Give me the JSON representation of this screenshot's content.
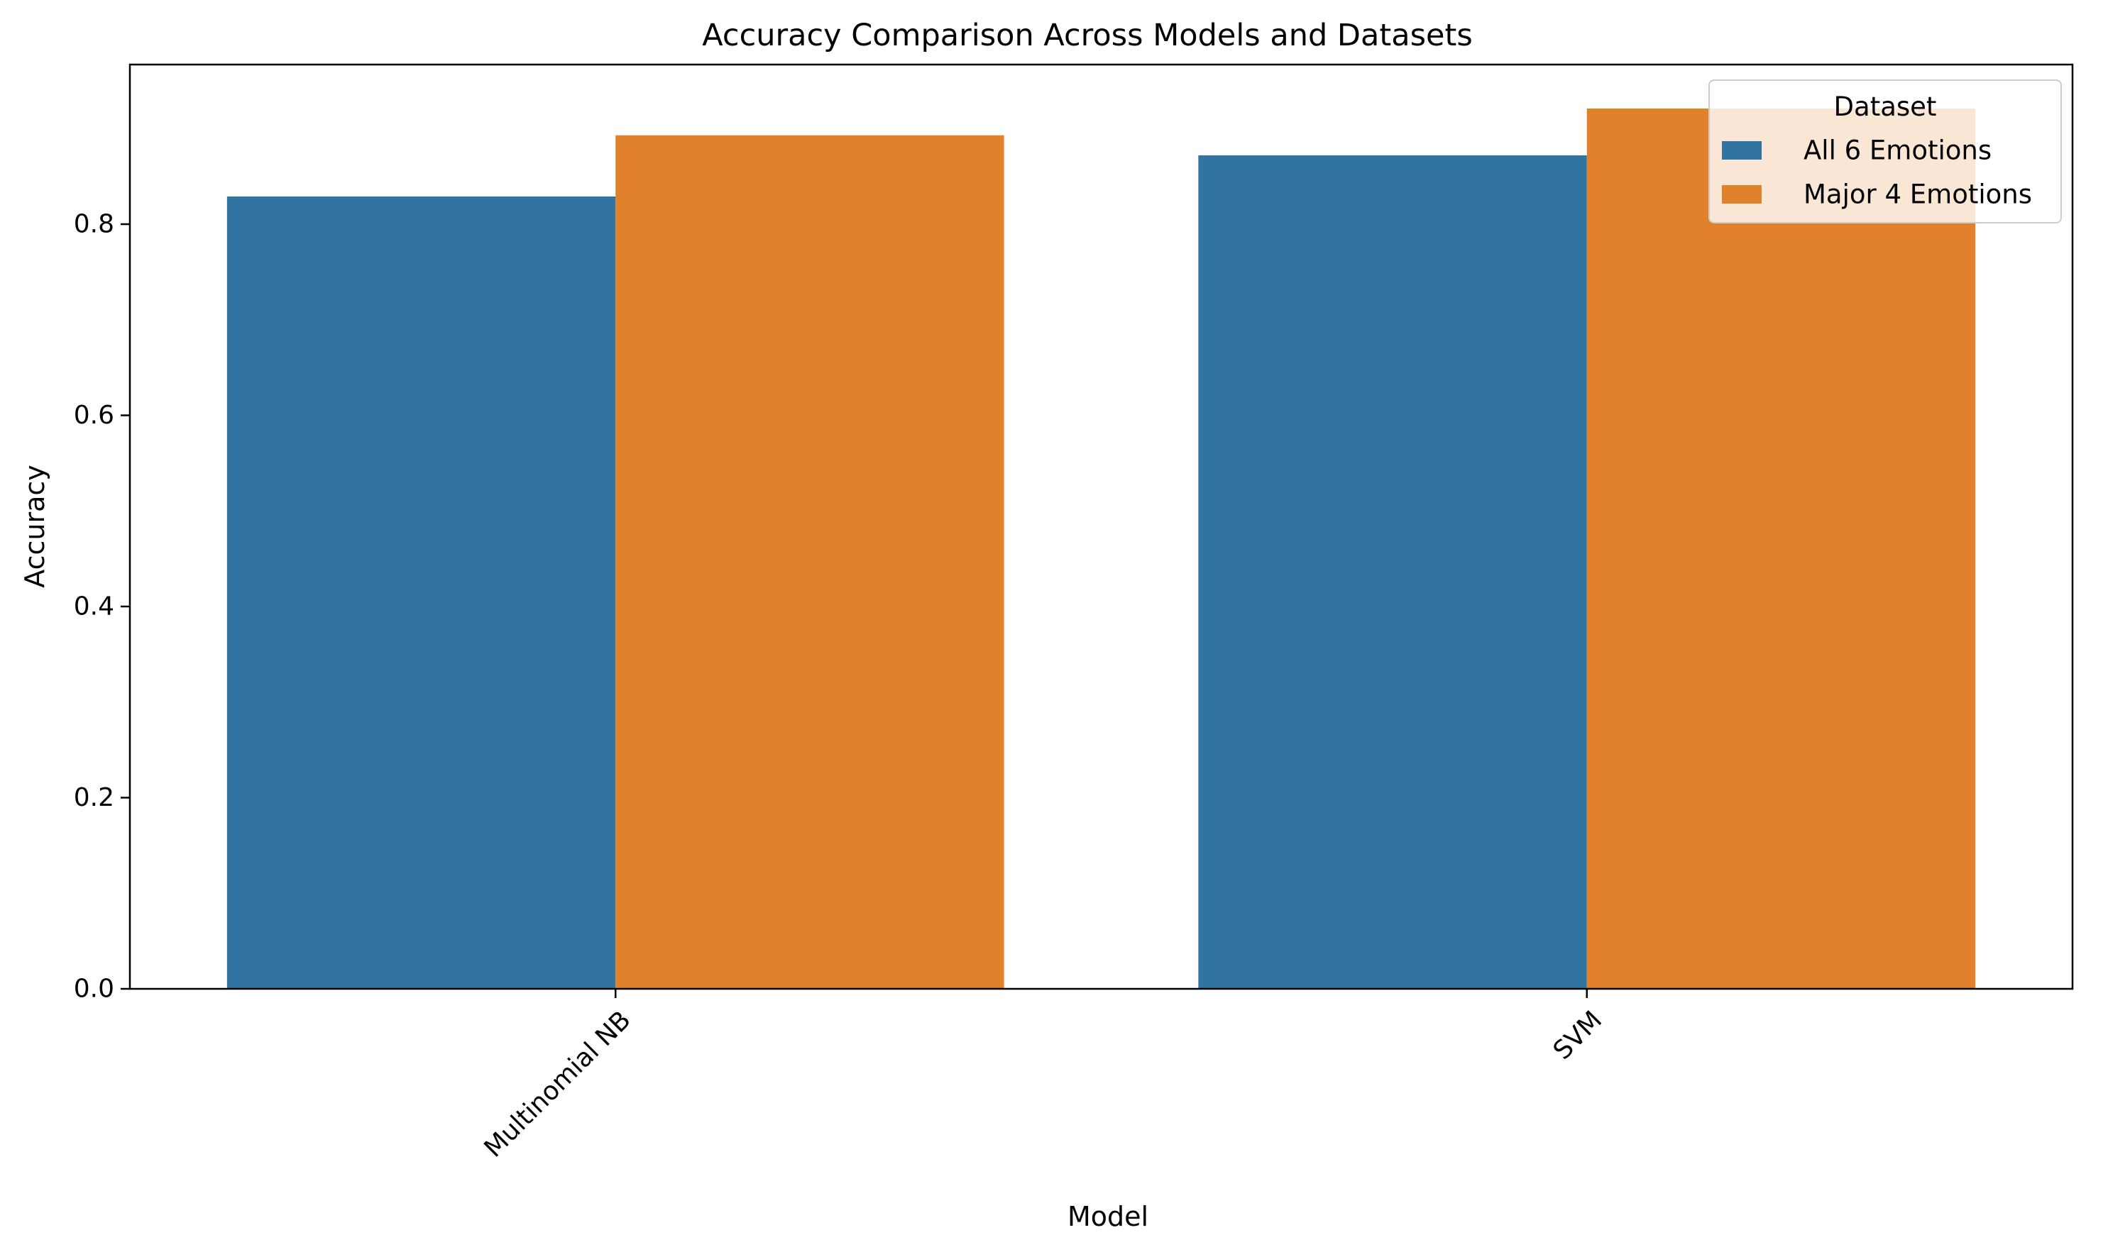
{
  "chart_data": {
    "type": "bar",
    "title": "Accuracy Comparison Across Models and Datasets",
    "xlabel": "Model",
    "ylabel": "Accuracy",
    "categories": [
      "Multinomial NB",
      "SVM"
    ],
    "series": [
      {
        "name": "All 6 Emotions",
        "color": "#3274a1",
        "values": [
          0.829,
          0.872
        ]
      },
      {
        "name": "Major 4 Emotions",
        "color": "#e1812c",
        "values": [
          0.893,
          0.921
        ]
      }
    ],
    "ylim": [
      0,
      0.967
    ],
    "yticks": [
      0.0,
      0.2,
      0.4,
      0.6,
      0.8
    ],
    "ytick_labels": [
      "0.0",
      "0.2",
      "0.4",
      "0.6",
      "0.8"
    ],
    "grid": false,
    "legend": {
      "title": "Dataset",
      "placement": "top-right"
    }
  }
}
